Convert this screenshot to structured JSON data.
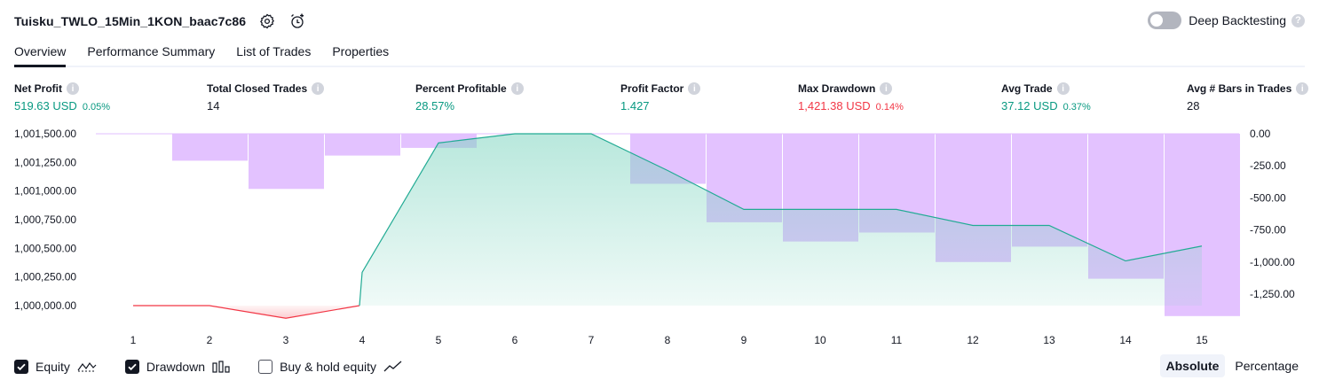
{
  "header": {
    "strategy_name": "Tuisku_TWLO_15Min_1KON_baac7c86",
    "deep_backtesting_label": "Deep Backtesting",
    "help_glyph": "?"
  },
  "tabs": [
    "Overview",
    "Performance Summary",
    "List of Trades",
    "Properties"
  ],
  "metrics": [
    {
      "label": "Net Profit",
      "value": "519.63 USD",
      "pct": "0.05%",
      "color": "#089981"
    },
    {
      "label": "Total Closed Trades",
      "value": "14",
      "pct": "",
      "color": "#131722"
    },
    {
      "label": "Percent Profitable",
      "value": "28.57%",
      "pct": "",
      "color": "#089981"
    },
    {
      "label": "Profit Factor",
      "value": "1.427",
      "pct": "",
      "color": "#089981"
    },
    {
      "label": "Max Drawdown",
      "value": "1,421.38 USD",
      "pct": "0.14%",
      "color": "#f23645"
    },
    {
      "label": "Avg Trade",
      "value": "37.12 USD",
      "pct": "0.37%",
      "color": "#089981"
    },
    {
      "label": "Avg # Bars in Trades",
      "value": "28",
      "pct": "",
      "color": "#131722"
    }
  ],
  "chart_data": {
    "type": "area",
    "x": [
      1,
      2,
      3,
      4,
      5,
      6,
      7,
      8,
      9,
      10,
      11,
      12,
      13,
      14,
      15
    ],
    "left_axis_ticks": [
      "1,001,500.00",
      "1,001,250.00",
      "1,001,000.00",
      "1,000,750.00",
      "1,000,500.00",
      "1,000,250.00",
      "1,000,000.00"
    ],
    "right_axis_ticks": [
      "0.00",
      "-250.00",
      "-500.00",
      "-750.00",
      "-1,000.00",
      "-1,250.00"
    ],
    "left_ylim": [
      1000000,
      1001500
    ],
    "right_ylim": [
      -1250,
      0
    ],
    "series": [
      {
        "name": "Equity",
        "values": [
          1000000,
          1000000,
          999890,
          1000290,
          1001420,
          1001500,
          1001500,
          1001180,
          1000840,
          1000840,
          1000840,
          1000700,
          1000700,
          1000390,
          1000520
        ],
        "colors": {
          "line": "#22ab94",
          "fill": "#7fd5c0",
          "below_initial": "#f23645"
        }
      },
      {
        "name": "Drawdown",
        "values": [
          0,
          -210,
          -430,
          -170,
          -110,
          0,
          0,
          -390,
          -690,
          -840,
          -770,
          -1000,
          -880,
          -1130,
          -1421.38
        ],
        "color": "#e1bfff"
      }
    ]
  },
  "bottom": {
    "equity_label": "Equity",
    "drawdown_label": "Drawdown",
    "buyhold_label": "Buy & hold equity",
    "absolute_label": "Absolute",
    "percentage_label": "Percentage"
  }
}
